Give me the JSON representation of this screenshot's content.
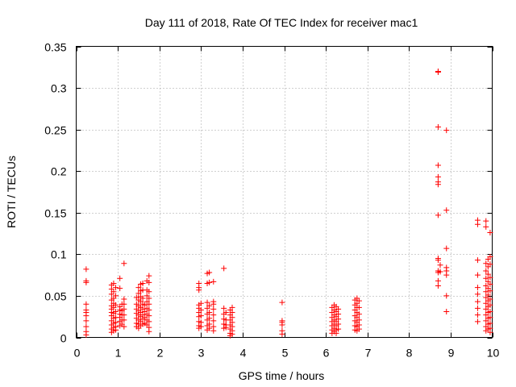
{
  "chart_data": {
    "type": "scatter",
    "title": "Day 111 of 2018, Rate Of TEC Index for receiver mac1",
    "xlabel": "GPS time / hours",
    "ylabel": "ROTI / TECUs",
    "xlim": [
      0,
      10
    ],
    "ylim": [
      0,
      0.35
    ],
    "grid": true,
    "marker": "+",
    "color": "#ff0000",
    "x_ticks": [
      0,
      1,
      2,
      3,
      4,
      5,
      6,
      7,
      8,
      9,
      10
    ],
    "x_tick_labels": [
      "0",
      "1",
      "2",
      "3",
      "4",
      "5",
      "6",
      "7",
      "8",
      "9",
      "10"
    ],
    "y_ticks": [
      0,
      0.05,
      0.1,
      0.15,
      0.2,
      0.25,
      0.3,
      0.35
    ],
    "y_tick_labels": [
      "0",
      "0.05",
      "0.1",
      "0.15",
      "0.2",
      "0.25",
      "0.3",
      "0.35"
    ],
    "series": [
      {
        "name": "ROTI",
        "points": [
          [
            0.24,
            0.082
          ],
          [
            0.24,
            0.068
          ],
          [
            0.24,
            0.066
          ],
          [
            0.24,
            0.04
          ],
          [
            0.24,
            0.033
          ],
          [
            0.24,
            0.03
          ],
          [
            0.24,
            0.026
          ],
          [
            0.24,
            0.02
          ],
          [
            0.24,
            0.013
          ],
          [
            0.24,
            0.007
          ],
          [
            0.24,
            0.003
          ],
          [
            0.85,
            0.063
          ],
          [
            0.85,
            0.058
          ],
          [
            0.85,
            0.052
          ],
          [
            0.85,
            0.045
          ],
          [
            0.85,
            0.038
          ],
          [
            0.85,
            0.034
          ],
          [
            0.85,
            0.03
          ],
          [
            0.85,
            0.026
          ],
          [
            0.85,
            0.02
          ],
          [
            0.85,
            0.015
          ],
          [
            0.85,
            0.01
          ],
          [
            0.85,
            0.006
          ],
          [
            0.9,
            0.065
          ],
          [
            0.9,
            0.055
          ],
          [
            0.9,
            0.047
          ],
          [
            0.9,
            0.041
          ],
          [
            0.9,
            0.036
          ],
          [
            0.9,
            0.029
          ],
          [
            0.9,
            0.023
          ],
          [
            0.9,
            0.017
          ],
          [
            0.9,
            0.012
          ],
          [
            0.9,
            0.008
          ],
          [
            0.95,
            0.06
          ],
          [
            0.95,
            0.05
          ],
          [
            0.95,
            0.039
          ],
          [
            0.95,
            0.031
          ],
          [
            0.95,
            0.024
          ],
          [
            0.95,
            0.018
          ],
          [
            0.95,
            0.013
          ],
          [
            0.95,
            0.009
          ],
          [
            1.05,
            0.071
          ],
          [
            1.05,
            0.059
          ],
          [
            1.05,
            0.037
          ],
          [
            1.05,
            0.033
          ],
          [
            1.05,
            0.028
          ],
          [
            1.05,
            0.024
          ],
          [
            1.05,
            0.019
          ],
          [
            1.05,
            0.014
          ],
          [
            1.1,
            0.04
          ],
          [
            1.1,
            0.032
          ],
          [
            1.1,
            0.027
          ],
          [
            1.1,
            0.021
          ],
          [
            1.1,
            0.016
          ],
          [
            1.15,
            0.089
          ],
          [
            1.15,
            0.046
          ],
          [
            1.15,
            0.04
          ],
          [
            1.15,
            0.034
          ],
          [
            1.15,
            0.027
          ],
          [
            1.15,
            0.021
          ],
          [
            1.15,
            0.013
          ],
          [
            1.45,
            0.048
          ],
          [
            1.45,
            0.04
          ],
          [
            1.45,
            0.034
          ],
          [
            1.45,
            0.029
          ],
          [
            1.45,
            0.023
          ],
          [
            1.45,
            0.017
          ],
          [
            1.45,
            0.013
          ],
          [
            1.5,
            0.06
          ],
          [
            1.5,
            0.053
          ],
          [
            1.5,
            0.045
          ],
          [
            1.5,
            0.038
          ],
          [
            1.5,
            0.032
          ],
          [
            1.5,
            0.027
          ],
          [
            1.5,
            0.021
          ],
          [
            1.5,
            0.016
          ],
          [
            1.5,
            0.011
          ],
          [
            1.55,
            0.064
          ],
          [
            1.55,
            0.056
          ],
          [
            1.55,
            0.049
          ],
          [
            1.55,
            0.043
          ],
          [
            1.55,
            0.036
          ],
          [
            1.55,
            0.03
          ],
          [
            1.55,
            0.025
          ],
          [
            1.55,
            0.019
          ],
          [
            1.55,
            0.014
          ],
          [
            1.6,
            0.065
          ],
          [
            1.6,
            0.057
          ],
          [
            1.6,
            0.047
          ],
          [
            1.6,
            0.04
          ],
          [
            1.6,
            0.034
          ],
          [
            1.6,
            0.027
          ],
          [
            1.6,
            0.022
          ],
          [
            1.6,
            0.016
          ],
          [
            1.65,
            0.039
          ],
          [
            1.65,
            0.031
          ],
          [
            1.65,
            0.024
          ],
          [
            1.65,
            0.017
          ],
          [
            1.7,
            0.068
          ],
          [
            1.7,
            0.057
          ],
          [
            1.7,
            0.05
          ],
          [
            1.7,
            0.043
          ],
          [
            1.7,
            0.035
          ],
          [
            1.7,
            0.028
          ],
          [
            1.7,
            0.021
          ],
          [
            1.7,
            0.015
          ],
          [
            1.75,
            0.074
          ],
          [
            1.75,
            0.066
          ],
          [
            1.75,
            0.055
          ],
          [
            1.75,
            0.047
          ],
          [
            1.75,
            0.04
          ],
          [
            1.75,
            0.033
          ],
          [
            1.75,
            0.026
          ],
          [
            1.75,
            0.019
          ],
          [
            1.75,
            0.012
          ],
          [
            1.75,
            0.007
          ],
          [
            2.95,
            0.065
          ],
          [
            2.95,
            0.06
          ],
          [
            2.95,
            0.057
          ],
          [
            2.95,
            0.039
          ],
          [
            2.95,
            0.035
          ],
          [
            2.95,
            0.03
          ],
          [
            2.95,
            0.025
          ],
          [
            2.95,
            0.019
          ],
          [
            2.95,
            0.014
          ],
          [
            2.95,
            0.011
          ],
          [
            3.0,
            0.041
          ],
          [
            3.0,
            0.033
          ],
          [
            3.0,
            0.026
          ],
          [
            3.0,
            0.018
          ],
          [
            3.0,
            0.013
          ],
          [
            3.15,
            0.077
          ],
          [
            3.15,
            0.065
          ],
          [
            3.15,
            0.042
          ],
          [
            3.15,
            0.035
          ],
          [
            3.15,
            0.028
          ],
          [
            3.15,
            0.021
          ],
          [
            3.15,
            0.014
          ],
          [
            3.15,
            0.009
          ],
          [
            3.2,
            0.078
          ],
          [
            3.2,
            0.066
          ],
          [
            3.2,
            0.038
          ],
          [
            3.2,
            0.03
          ],
          [
            3.2,
            0.023
          ],
          [
            3.2,
            0.016
          ],
          [
            3.2,
            0.011
          ],
          [
            3.3,
            0.067
          ],
          [
            3.3,
            0.043
          ],
          [
            3.3,
            0.04
          ],
          [
            3.3,
            0.034
          ],
          [
            3.3,
            0.027
          ],
          [
            3.3,
            0.02
          ],
          [
            3.3,
            0.013
          ],
          [
            3.3,
            0.008
          ],
          [
            3.55,
            0.083
          ],
          [
            3.55,
            0.035
          ],
          [
            3.55,
            0.028
          ],
          [
            3.55,
            0.022
          ],
          [
            3.55,
            0.016
          ],
          [
            3.55,
            0.011
          ],
          [
            3.6,
            0.03
          ],
          [
            3.6,
            0.021
          ],
          [
            3.6,
            0.015
          ],
          [
            3.6,
            0.012
          ],
          [
            3.7,
            0.033
          ],
          [
            3.7,
            0.027
          ],
          [
            3.7,
            0.021
          ],
          [
            3.7,
            0.015
          ],
          [
            3.7,
            0.01
          ],
          [
            3.7,
            0.005
          ],
          [
            3.7,
            0.002
          ],
          [
            3.75,
            0.036
          ],
          [
            3.75,
            0.03
          ],
          [
            3.75,
            0.024
          ],
          [
            3.75,
            0.018
          ],
          [
            3.75,
            0.013
          ],
          [
            3.75,
            0.008
          ],
          [
            3.75,
            0.004
          ],
          [
            4.95,
            0.042
          ],
          [
            4.95,
            0.02
          ],
          [
            4.95,
            0.018
          ],
          [
            4.95,
            0.015
          ],
          [
            4.95,
            0.008
          ],
          [
            4.95,
            0.004
          ],
          [
            6.15,
            0.036
          ],
          [
            6.15,
            0.03
          ],
          [
            6.15,
            0.024
          ],
          [
            6.15,
            0.019
          ],
          [
            6.15,
            0.014
          ],
          [
            6.15,
            0.009
          ],
          [
            6.15,
            0.005
          ],
          [
            6.2,
            0.039
          ],
          [
            6.2,
            0.033
          ],
          [
            6.2,
            0.027
          ],
          [
            6.2,
            0.021
          ],
          [
            6.2,
            0.016
          ],
          [
            6.2,
            0.011
          ],
          [
            6.2,
            0.007
          ],
          [
            6.25,
            0.037
          ],
          [
            6.25,
            0.031
          ],
          [
            6.25,
            0.025
          ],
          [
            6.25,
            0.019
          ],
          [
            6.25,
            0.014
          ],
          [
            6.25,
            0.009
          ],
          [
            6.25,
            0.005
          ],
          [
            6.3,
            0.034
          ],
          [
            6.3,
            0.028
          ],
          [
            6.3,
            0.022
          ],
          [
            6.3,
            0.016
          ],
          [
            6.3,
            0.01
          ],
          [
            6.7,
            0.045
          ],
          [
            6.7,
            0.039
          ],
          [
            6.7,
            0.033
          ],
          [
            6.7,
            0.026
          ],
          [
            6.7,
            0.02
          ],
          [
            6.7,
            0.014
          ],
          [
            6.7,
            0.009
          ],
          [
            6.75,
            0.047
          ],
          [
            6.75,
            0.041
          ],
          [
            6.75,
            0.036
          ],
          [
            6.75,
            0.03
          ],
          [
            6.75,
            0.024
          ],
          [
            6.75,
            0.018
          ],
          [
            6.75,
            0.013
          ],
          [
            6.75,
            0.008
          ],
          [
            6.8,
            0.044
          ],
          [
            6.8,
            0.036
          ],
          [
            6.8,
            0.028
          ],
          [
            6.8,
            0.021
          ],
          [
            6.8,
            0.015
          ],
          [
            6.8,
            0.01
          ],
          [
            8.7,
            0.32
          ],
          [
            8.7,
            0.319
          ],
          [
            8.7,
            0.253
          ],
          [
            8.7,
            0.207
          ],
          [
            8.7,
            0.193
          ],
          [
            8.7,
            0.187
          ],
          [
            8.7,
            0.184
          ],
          [
            8.7,
            0.147
          ],
          [
            8.7,
            0.095
          ],
          [
            8.7,
            0.093
          ],
          [
            8.7,
            0.08
          ],
          [
            8.7,
            0.078
          ],
          [
            8.7,
            0.068
          ],
          [
            8.7,
            0.062
          ],
          [
            8.75,
            0.087
          ],
          [
            8.75,
            0.079
          ],
          [
            8.9,
            0.249
          ],
          [
            8.9,
            0.153
          ],
          [
            8.9,
            0.107
          ],
          [
            8.9,
            0.084
          ],
          [
            8.9,
            0.08
          ],
          [
            8.9,
            0.075
          ],
          [
            8.9,
            0.05
          ],
          [
            8.9,
            0.031
          ],
          [
            9.65,
            0.141
          ],
          [
            9.65,
            0.136
          ],
          [
            9.65,
            0.093
          ],
          [
            9.65,
            0.075
          ],
          [
            9.65,
            0.06
          ],
          [
            9.65,
            0.052
          ],
          [
            9.65,
            0.043
          ],
          [
            9.65,
            0.035
          ],
          [
            9.65,
            0.027
          ],
          [
            9.65,
            0.019
          ],
          [
            9.85,
            0.14
          ],
          [
            9.85,
            0.133
          ],
          [
            9.85,
            0.089
          ],
          [
            9.85,
            0.08
          ],
          [
            9.85,
            0.071
          ],
          [
            9.85,
            0.062
          ],
          [
            9.85,
            0.055
          ],
          [
            9.85,
            0.048
          ],
          [
            9.85,
            0.041
          ],
          [
            9.85,
            0.034
          ],
          [
            9.85,
            0.027
          ],
          [
            9.85,
            0.02
          ],
          [
            9.85,
            0.013
          ],
          [
            9.85,
            0.008
          ],
          [
            9.9,
            0.094
          ],
          [
            9.9,
            0.085
          ],
          [
            9.9,
            0.076
          ],
          [
            9.9,
            0.067
          ],
          [
            9.9,
            0.059
          ],
          [
            9.9,
            0.051
          ],
          [
            9.9,
            0.044
          ],
          [
            9.9,
            0.037
          ],
          [
            9.9,
            0.03
          ],
          [
            9.9,
            0.023
          ],
          [
            9.9,
            0.016
          ],
          [
            9.9,
            0.01
          ],
          [
            9.95,
            0.126
          ],
          [
            9.95,
            0.097
          ],
          [
            9.95,
            0.088
          ],
          [
            9.95,
            0.072
          ],
          [
            9.95,
            0.064
          ],
          [
            9.95,
            0.056
          ],
          [
            9.95,
            0.046
          ],
          [
            9.95,
            0.039
          ],
          [
            9.95,
            0.031
          ],
          [
            9.95,
            0.024
          ],
          [
            9.95,
            0.017
          ],
          [
            9.95,
            0.011
          ],
          [
            9.95,
            0.006
          ]
        ]
      }
    ]
  }
}
